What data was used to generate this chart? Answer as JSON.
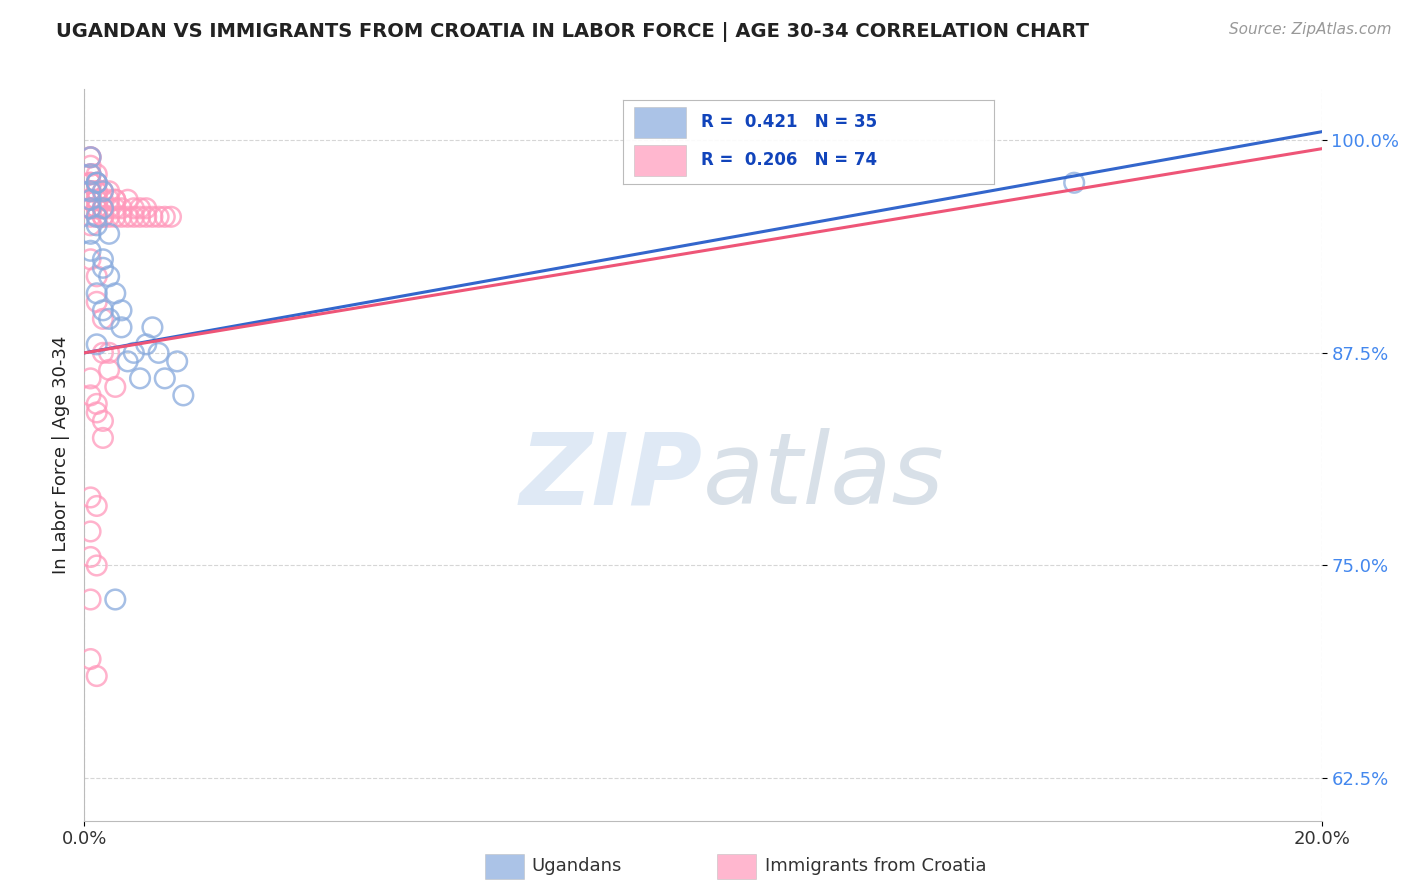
{
  "title": "UGANDAN VS IMMIGRANTS FROM CROATIA IN LABOR FORCE | AGE 30-34 CORRELATION CHART",
  "source": "Source: ZipAtlas.com",
  "ylabel": "In Labor Force | Age 30-34",
  "ytick_labels": [
    "62.5%",
    "75.0%",
    "87.5%",
    "100.0%"
  ],
  "ytick_values": [
    0.625,
    0.75,
    0.875,
    1.0
  ],
  "legend_blue_text": "R =  0.421   N = 35",
  "legend_pink_text": "R =  0.206   N = 74",
  "legend_label_blue": "Ugandans",
  "legend_label_pink": "Immigrants from Croatia",
  "watermark_zip": "ZIP",
  "watermark_atlas": "atlas",
  "blue_scatter_color": "#88AADD",
  "pink_scatter_color": "#FF99BB",
  "blue_line_color": "#3366CC",
  "pink_line_color": "#EE5577",
  "ytick_color": "#4488EE",
  "xtick_color": "#333333",
  "title_color": "#222222",
  "source_color": "#999999",
  "grid_color": "#CCCCCC",
  "ugandan_x": [
    0.001,
    0.002,
    0.001,
    0.003,
    0.001,
    0.002,
    0.001,
    0.002,
    0.003,
    0.001,
    0.001,
    0.002,
    0.001,
    0.003,
    0.004,
    0.002,
    0.003,
    0.004,
    0.005,
    0.003,
    0.006,
    0.004,
    0.008,
    0.006,
    0.01,
    0.012,
    0.007,
    0.015,
    0.009,
    0.011,
    0.013,
    0.016,
    0.005,
    0.002,
    0.16
  ],
  "ugandan_y": [
    0.965,
    0.975,
    0.98,
    0.97,
    0.96,
    0.975,
    0.99,
    0.955,
    0.96,
    0.945,
    0.935,
    0.95,
    0.97,
    0.93,
    0.945,
    0.91,
    0.925,
    0.92,
    0.91,
    0.9,
    0.9,
    0.895,
    0.875,
    0.89,
    0.88,
    0.875,
    0.87,
    0.87,
    0.86,
    0.89,
    0.86,
    0.85,
    0.73,
    0.88,
    0.975
  ],
  "croatia_x": [
    0.001,
    0.001,
    0.001,
    0.001,
    0.001,
    0.001,
    0.001,
    0.001,
    0.001,
    0.001,
    0.001,
    0.001,
    0.001,
    0.001,
    0.001,
    0.002,
    0.002,
    0.002,
    0.002,
    0.002,
    0.002,
    0.002,
    0.002,
    0.002,
    0.003,
    0.003,
    0.003,
    0.003,
    0.003,
    0.003,
    0.004,
    0.004,
    0.004,
    0.004,
    0.005,
    0.005,
    0.005,
    0.005,
    0.006,
    0.006,
    0.007,
    0.007,
    0.008,
    0.008,
    0.009,
    0.009,
    0.01,
    0.01,
    0.011,
    0.012,
    0.013,
    0.014,
    0.001,
    0.002,
    0.002,
    0.003,
    0.003,
    0.004,
    0.004,
    0.005,
    0.001,
    0.001,
    0.002,
    0.002,
    0.003,
    0.003,
    0.001,
    0.002,
    0.001,
    0.001,
    0.002,
    0.001,
    0.001,
    0.002
  ],
  "croatia_y": [
    0.99,
    0.985,
    0.98,
    0.975,
    0.97,
    0.965,
    0.96,
    0.955,
    0.95,
    0.97,
    0.975,
    0.965,
    0.96,
    0.98,
    0.99,
    0.97,
    0.965,
    0.96,
    0.955,
    0.975,
    0.98,
    0.96,
    0.97,
    0.965,
    0.96,
    0.955,
    0.965,
    0.97,
    0.96,
    0.955,
    0.955,
    0.96,
    0.965,
    0.97,
    0.955,
    0.965,
    0.96,
    0.965,
    0.955,
    0.96,
    0.955,
    0.965,
    0.955,
    0.96,
    0.955,
    0.96,
    0.955,
    0.96,
    0.955,
    0.955,
    0.955,
    0.955,
    0.93,
    0.92,
    0.905,
    0.895,
    0.875,
    0.875,
    0.865,
    0.855,
    0.86,
    0.85,
    0.845,
    0.84,
    0.835,
    0.825,
    0.79,
    0.785,
    0.77,
    0.755,
    0.75,
    0.73,
    0.695,
    0.685
  ]
}
